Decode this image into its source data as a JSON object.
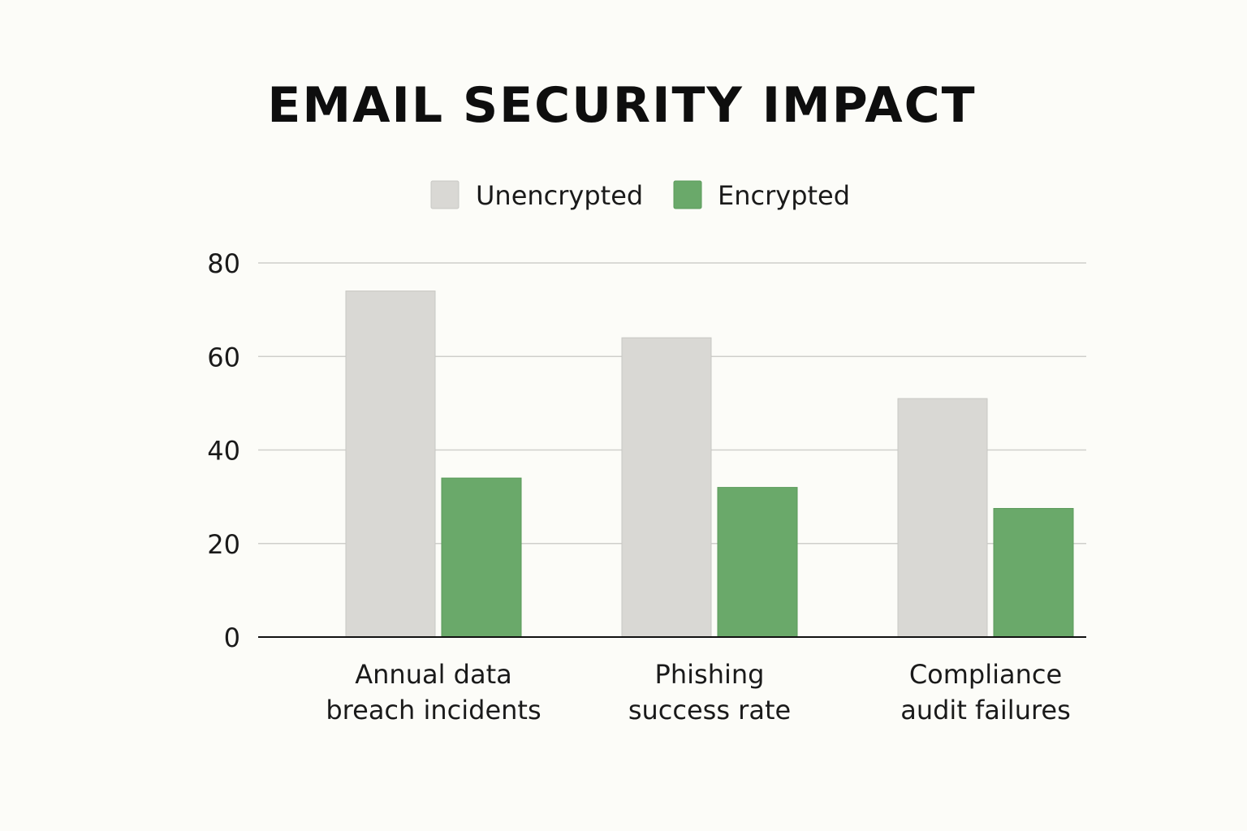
{
  "chart_data": {
    "type": "bar",
    "title": "EMAIL SECURITY IMPACT",
    "xlabel": "",
    "ylabel": "",
    "categories": [
      [
        "Annual data",
        "breach incidents"
      ],
      [
        "Phishing",
        "success rate"
      ],
      [
        "Compliance",
        "audit failures"
      ]
    ],
    "series": [
      {
        "name": "Unencrypted",
        "color": "#d9d8d4",
        "values": [
          74,
          64,
          51
        ]
      },
      {
        "name": "Encrypted",
        "color": "#6aa96a",
        "values": [
          34,
          32,
          27.5
        ]
      }
    ],
    "ylim": [
      0,
      80
    ],
    "yticks": [
      "0",
      "20",
      "40",
      "60",
      "80"
    ],
    "grid": true,
    "legend": "top-center"
  }
}
